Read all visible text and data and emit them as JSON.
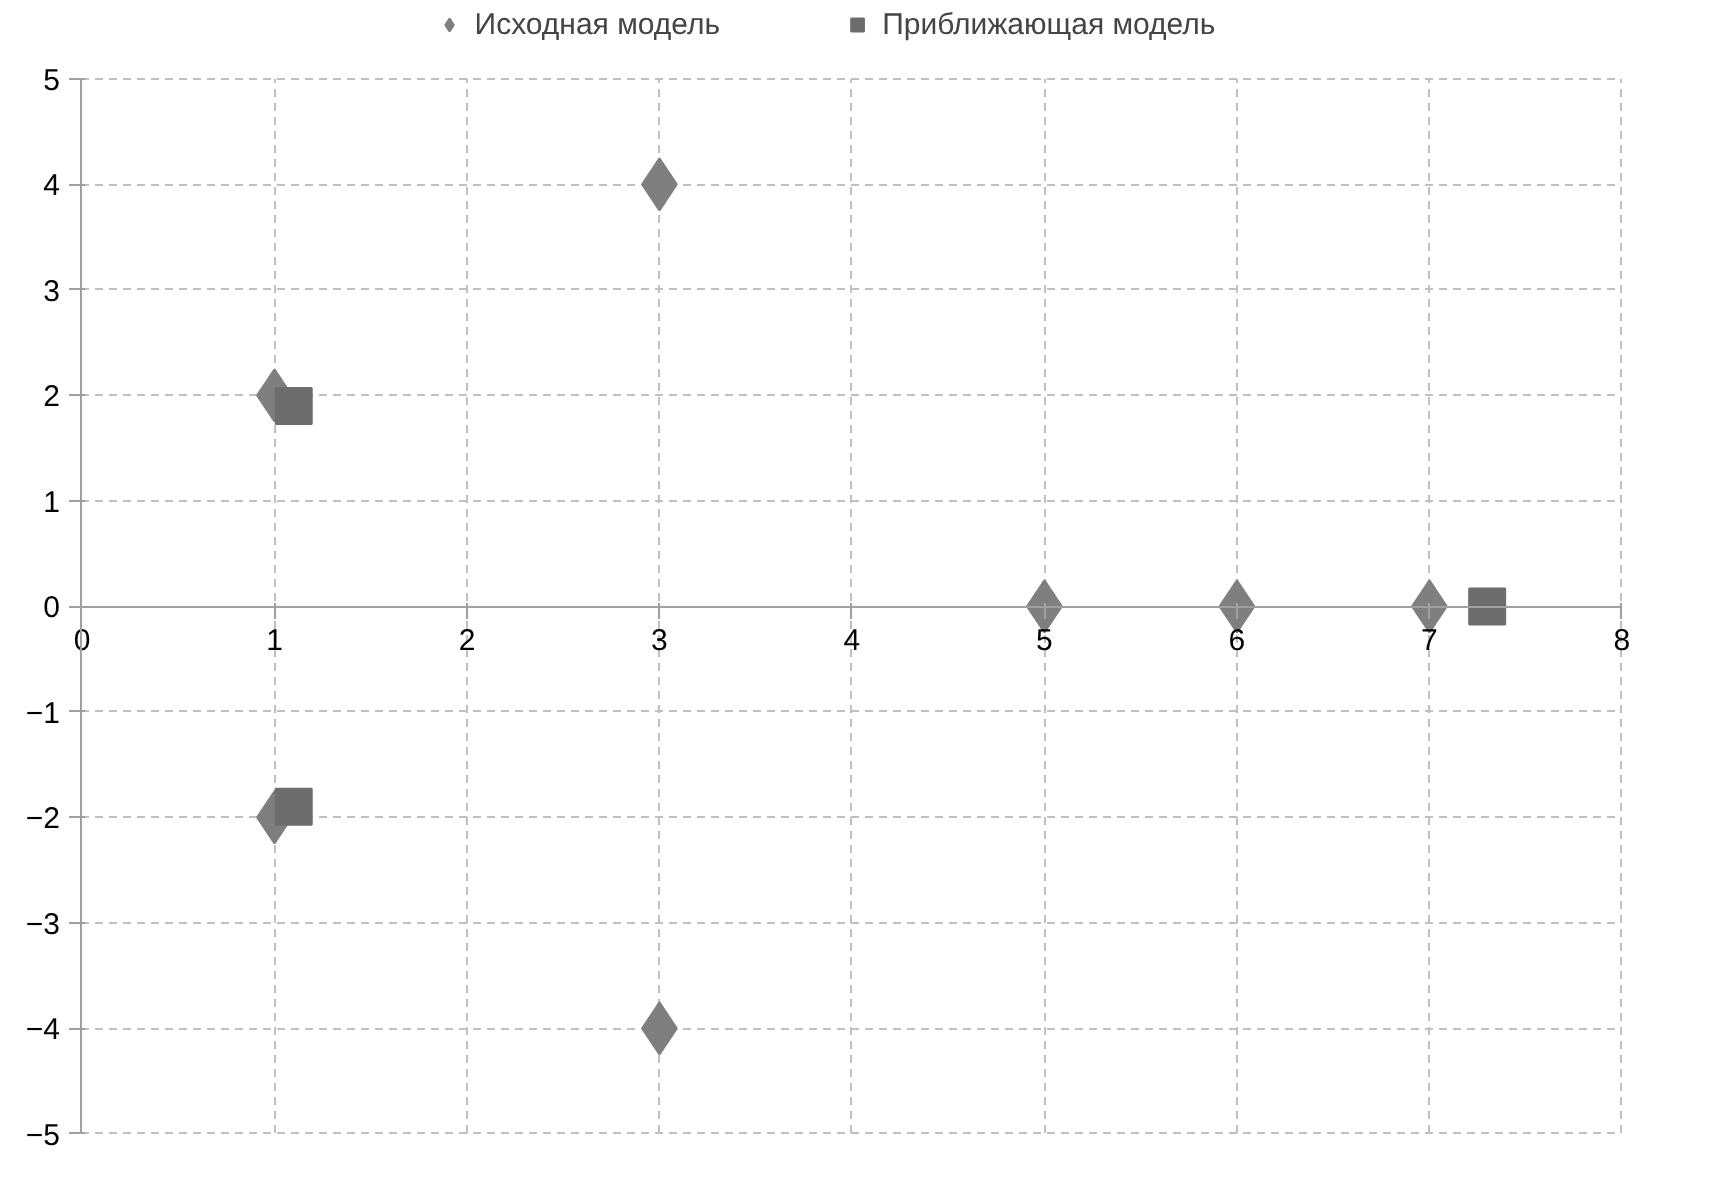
{
  "chart_data": {
    "type": "scatter",
    "xlim": [
      0,
      8
    ],
    "ylim": [
      -5,
      5
    ],
    "xticks": [
      0,
      1,
      2,
      3,
      4,
      5,
      6,
      7,
      8
    ],
    "yticks": [
      -5,
      -4,
      -3,
      -2,
      -1,
      0,
      1,
      2,
      3,
      4,
      5
    ],
    "grid": true,
    "legend": "top",
    "series": [
      {
        "name": "Исходная модель",
        "color": "#7f7f7f",
        "marker": "diamond",
        "x": [
          1,
          1,
          3,
          3,
          5,
          6,
          7
        ],
        "values": [
          2,
          -2,
          4,
          -4,
          0,
          0,
          0
        ]
      },
      {
        "name": "Приближающая модель",
        "color": "#6d6d6d",
        "marker": "square",
        "x": [
          1.1,
          1.1,
          7.3
        ],
        "values": [
          1.9,
          -1.9,
          0
        ]
      }
    ]
  }
}
